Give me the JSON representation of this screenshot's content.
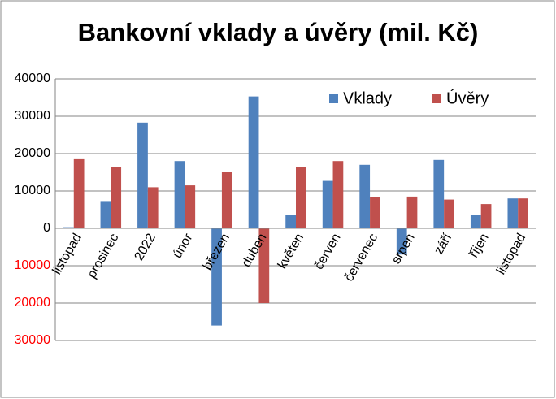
{
  "chart_data": {
    "type": "bar",
    "title": "Bankovní vklady a úvěry (mil. Kč)",
    "categories": [
      "listopad",
      "prosinec",
      "2022",
      "únor",
      "březen",
      "duben",
      "květen",
      "červen",
      "červenec",
      "srpen",
      "září",
      "říjen",
      "listopad"
    ],
    "series": [
      {
        "name": "Vklady",
        "color": "#4f81bd",
        "values": [
          300,
          7300,
          28300,
          18000,
          -26000,
          35300,
          3500,
          12700,
          17000,
          -7000,
          18300,
          3500,
          8000
        ]
      },
      {
        "name": "Úvěry",
        "color": "#c0504d",
        "values": [
          18500,
          16500,
          11000,
          11500,
          15000,
          -20000,
          16500,
          18000,
          8300,
          8500,
          7700,
          6500,
          8000
        ]
      }
    ],
    "ylim": [
      -30000,
      40000
    ],
    "yticks": [
      {
        "value": -30000,
        "label": "30000"
      },
      {
        "value": -20000,
        "label": "20000"
      },
      {
        "value": -10000,
        "label": "10000"
      },
      0,
      10000,
      20000,
      30000,
      40000
    ],
    "negative_tick_color": "#ff0000",
    "grid": true,
    "legend": "top-right"
  }
}
